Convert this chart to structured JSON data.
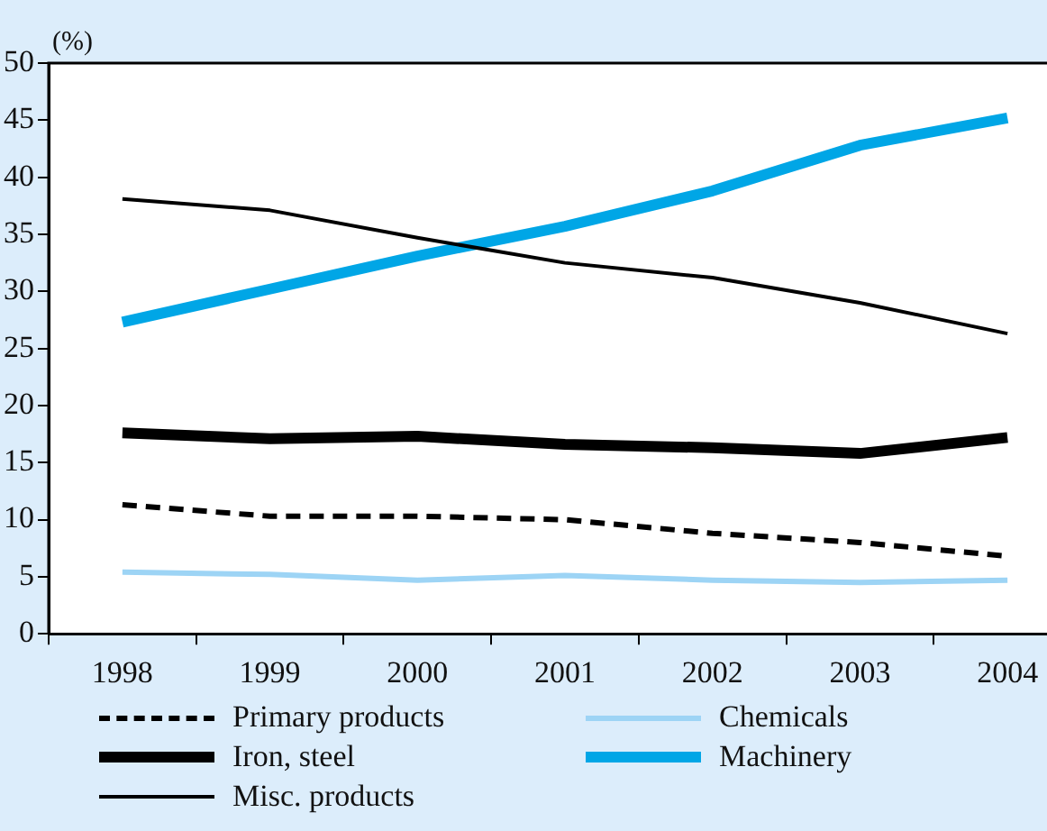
{
  "chart_data": {
    "type": "line",
    "ylabel": "(%)",
    "categories": [
      "1998",
      "1999",
      "2000",
      "2001",
      "2002",
      "2003",
      "2004"
    ],
    "ylim": [
      0,
      50
    ],
    "yticks": [
      0,
      5,
      10,
      15,
      20,
      25,
      30,
      35,
      40,
      45,
      50
    ],
    "grid": false,
    "legend": "bottom",
    "marker": "none",
    "series": [
      {
        "name": "Primary products",
        "color": "#000000",
        "line_style": "dashed",
        "values": [
          11.3,
          10.3,
          10.3,
          10.0,
          8.8,
          8.0,
          6.8
        ]
      },
      {
        "name": "Iron, steel",
        "color": "#000000",
        "line_style": "solid",
        "values": [
          17.6,
          17.1,
          17.3,
          16.6,
          16.3,
          15.8,
          17.2
        ]
      },
      {
        "name": "Misc. products",
        "color": "#000000",
        "line_style": "solid",
        "values": [
          38.1,
          37.1,
          34.7,
          32.5,
          31.2,
          29.0,
          26.3
        ]
      },
      {
        "name": "Chemicals",
        "color": "#9dd4f5",
        "line_style": "solid",
        "values": [
          5.4,
          5.2,
          4.7,
          5.1,
          4.7,
          4.5,
          4.7
        ]
      },
      {
        "name": "Machinery",
        "color": "#00a6e6",
        "line_style": "solid",
        "values": [
          27.3,
          30.2,
          33.1,
          35.7,
          38.8,
          42.8,
          45.2
        ]
      }
    ]
  }
}
